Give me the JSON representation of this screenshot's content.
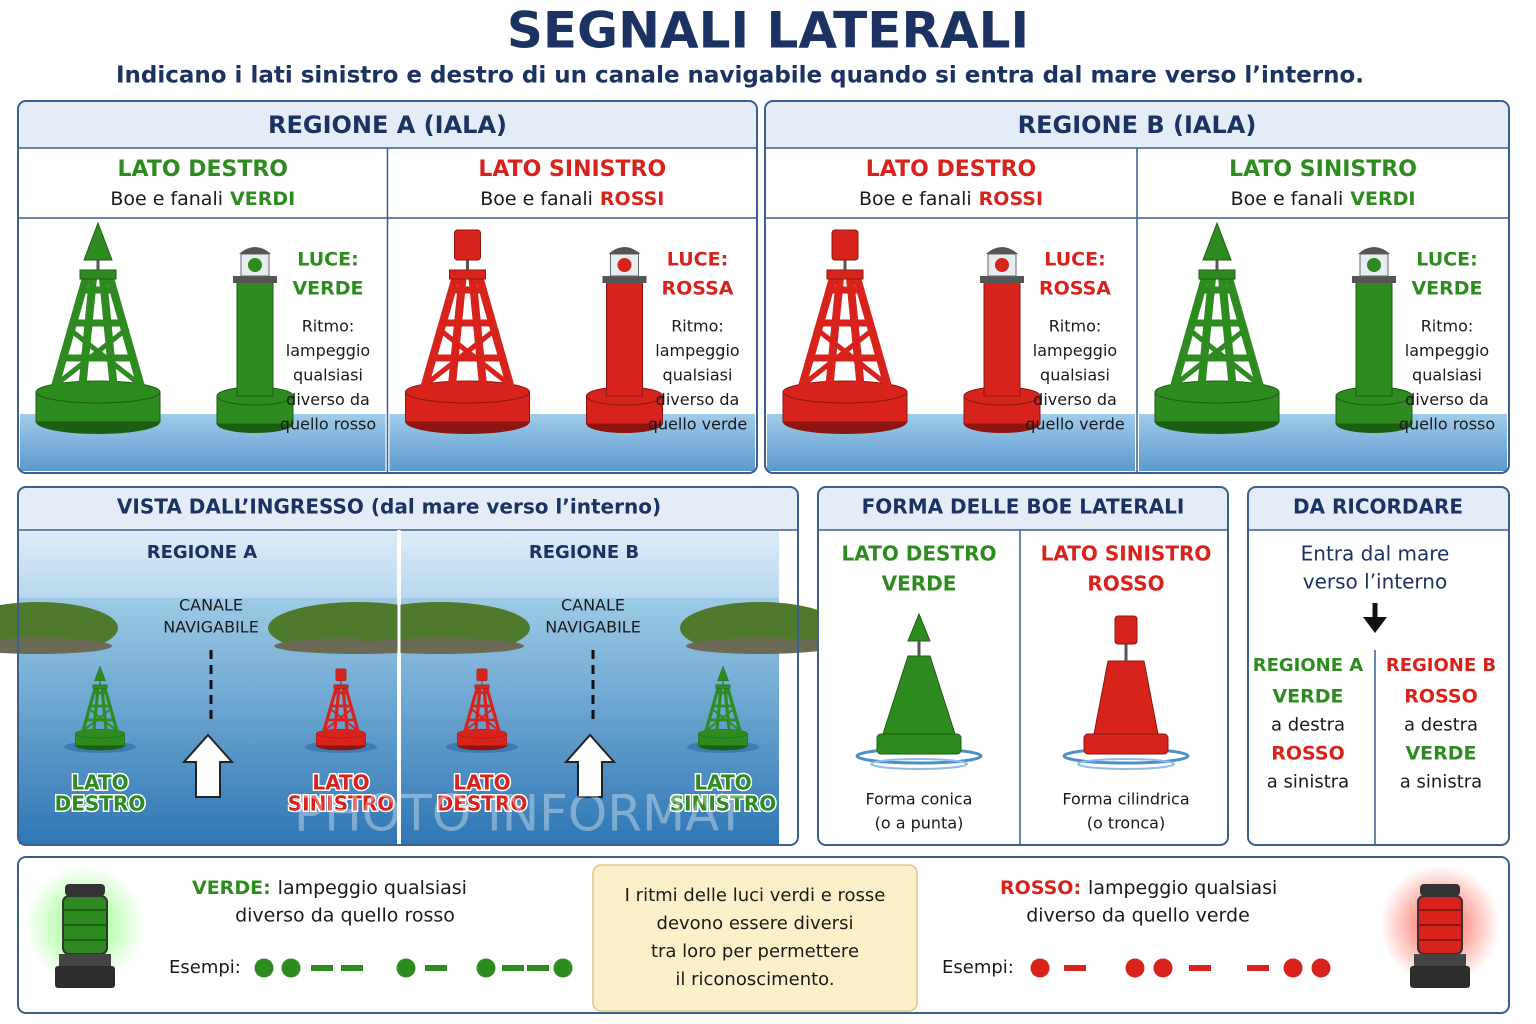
{
  "header": {
    "title": "SEGNALI LATERALI",
    "subtitle": "Indicano i lati sinistro e destro di un canale navigabile quando si entra dal mare verso l’interno."
  },
  "regions": [
    {
      "title": "REGIONE A  (IALA)",
      "columns": [
        {
          "side": "LATO DESTRO",
          "lights_prefix": "Boe e fanali",
          "lights_word": "VERDI",
          "color": "#2e8b1f",
          "light_label": "LUCE:",
          "light_name": "VERDE",
          "rhythm": [
            "Ritmo:",
            "lampeggio",
            "qualsiasi",
            "diverso da",
            "quello rosso"
          ]
        },
        {
          "side": "LATO SINISTRO",
          "lights_prefix": "Boe e fanali",
          "lights_word": "ROSSI",
          "color": "#d8231c",
          "light_label": "LUCE:",
          "light_name": "ROSSA",
          "rhythm": [
            "Ritmo:",
            "lampeggio",
            "qualsiasi",
            "diverso da",
            "quello verde"
          ]
        }
      ]
    },
    {
      "title": "REGIONE B  (IALA)",
      "columns": [
        {
          "side": "LATO DESTRO",
          "lights_prefix": "Boe e fanali",
          "lights_word": "ROSSI",
          "color": "#d8231c",
          "light_label": "LUCE:",
          "light_name": "ROSSA",
          "rhythm": [
            "Ritmo:",
            "lampeggio",
            "qualsiasi",
            "diverso da",
            "quello verde"
          ]
        },
        {
          "side": "LATO SINISTRO",
          "lights_prefix": "Boe e fanali",
          "lights_word": "VERDI",
          "color": "#2e8b1f",
          "light_label": "LUCE:",
          "light_name": "VERDE",
          "rhythm": [
            "Ritmo:",
            "lampeggio",
            "qualsiasi",
            "diverso da",
            "quello rosso"
          ]
        }
      ]
    }
  ],
  "view": {
    "title": "VISTA DALL’INGRESSO (dal mare verso l’interno)",
    "panels": [
      {
        "region": "REGIONE A",
        "channel": [
          "CANALE",
          "NAVIGABILE"
        ],
        "left": {
          "label": [
            "LATO",
            "DESTRO"
          ],
          "color": "#2e8b1f"
        },
        "right": {
          "label": [
            "LATO",
            "SINISTRO"
          ],
          "color": "#d8231c"
        }
      },
      {
        "region": "REGIONE B",
        "channel": [
          "CANALE",
          "NAVIGABILE"
        ],
        "left": {
          "label": [
            "LATO",
            "DESTRO"
          ],
          "color": "#d8231c"
        },
        "right": {
          "label": [
            "LATO",
            "SINISTRO"
          ],
          "color": "#2e8b1f"
        }
      }
    ]
  },
  "watermark": "PHOTO INFORMAT",
  "shape": {
    "title": "FORMA DELLE BOE LATERALI",
    "columns": [
      {
        "lines": [
          "LATO DESTRO",
          "VERDE"
        ],
        "color": "#2e8b1f",
        "caption": [
          "Forma conica",
          "(o a punta)"
        ]
      },
      {
        "lines": [
          "LATO SINISTRO",
          "ROSSO"
        ],
        "color": "#d8231c",
        "caption": [
          "Forma cilindrica",
          "(o tronca)"
        ]
      }
    ]
  },
  "remember": {
    "title": "DA RICORDARE",
    "intro": [
      "Entra dal mare",
      "verso l’interno"
    ],
    "columns": [
      {
        "region": "REGIONE A",
        "color": "#2e8b1f",
        "lines": [
          "VERDE",
          "a destra",
          "ROSSO",
          "a sinistra"
        ],
        "line_colors": [
          "#2e8b1f",
          "#1a1a1a",
          "#d8231c",
          "#1a1a1a"
        ]
      },
      {
        "region": "REGIONE B",
        "color": "#d8231c",
        "lines": [
          "ROSSO",
          "a destra",
          "VERDE",
          "a sinistra"
        ],
        "line_colors": [
          "#d8231c",
          "#1a1a1a",
          "#2e8b1f",
          "#1a1a1a"
        ]
      }
    ]
  },
  "legend": {
    "items": [
      {
        "label": "VERDE:",
        "text": [
          "lampeggio qualsiasi",
          "diverso da quello rosso"
        ],
        "examples_label": "Esempi:",
        "color": "#2e8b1f"
      },
      {
        "label": "ROSSO:",
        "text": [
          "lampeggio qualsiasi",
          "diverso da quello verde"
        ],
        "examples_label": "Esempi:",
        "color": "#d8231c"
      }
    ],
    "note": [
      "I ritmi delle luci verdi e rosse",
      "devono essere diversi",
      "tra loro per permettere",
      "il riconoscimento."
    ]
  }
}
